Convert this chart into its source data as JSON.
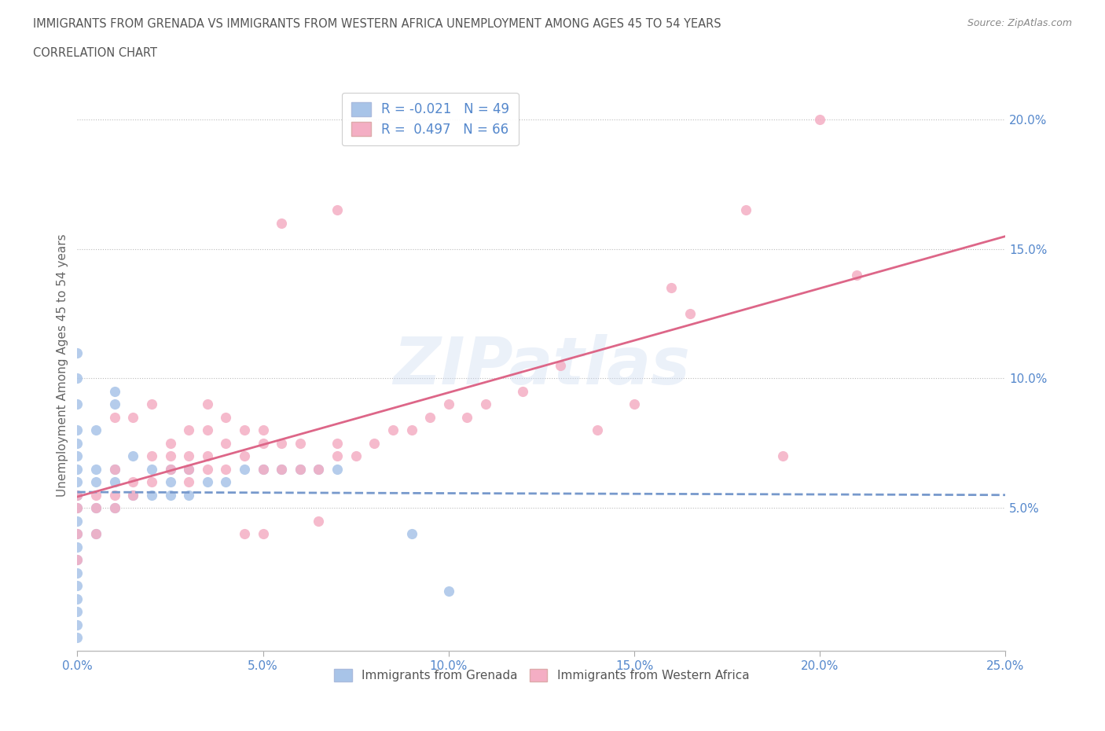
{
  "title_line1": "IMMIGRANTS FROM GRENADA VS IMMIGRANTS FROM WESTERN AFRICA UNEMPLOYMENT AMONG AGES 45 TO 54 YEARS",
  "title_line2": "CORRELATION CHART",
  "source": "Source: ZipAtlas.com",
  "ylabel": "Unemployment Among Ages 45 to 54 years",
  "xlim": [
    0.0,
    0.25
  ],
  "ylim": [
    -0.005,
    0.215
  ],
  "yticks": [
    0.05,
    0.1,
    0.15,
    0.2
  ],
  "ytick_labels": [
    "5.0%",
    "10.0%",
    "15.0%",
    "20.0%"
  ],
  "xticks": [
    0.0,
    0.05,
    0.1,
    0.15,
    0.2,
    0.25
  ],
  "xtick_labels": [
    "0.0%",
    "5.0%",
    "10.0%",
    "15.0%",
    "20.0%",
    "25.0%"
  ],
  "legend_labels": [
    "Immigrants from Grenada",
    "Immigrants from Western Africa"
  ],
  "R_grenada": -0.021,
  "N_grenada": 49,
  "R_western": 0.497,
  "N_western": 66,
  "color_grenada": "#a8c4e8",
  "color_western": "#f4aec4",
  "line_color_grenada": "#7799cc",
  "line_color_western": "#dd6688",
  "background_color": "#ffffff",
  "watermark": "ZIPatlas",
  "title_color": "#555555",
  "axis_color": "#5588cc",
  "grenada_x": [
    0.0,
    0.0,
    0.0,
    0.0,
    0.0,
    0.0,
    0.0,
    0.0,
    0.0,
    0.0,
    0.0,
    0.0,
    0.0,
    0.0,
    0.0,
    0.0,
    0.0,
    0.0,
    0.0,
    0.0,
    0.005,
    0.005,
    0.005,
    0.005,
    0.005,
    0.01,
    0.01,
    0.01,
    0.01,
    0.015,
    0.015,
    0.02,
    0.02,
    0.025,
    0.025,
    0.03,
    0.03,
    0.035,
    0.04,
    0.045,
    0.05,
    0.055,
    0.06,
    0.065,
    0.07,
    0.09,
    0.1,
    0.025,
    0.01
  ],
  "grenada_y": [
    0.01,
    0.02,
    0.03,
    0.035,
    0.04,
    0.045,
    0.05,
    0.055,
    0.06,
    0.065,
    0.07,
    0.075,
    0.08,
    0.09,
    0.1,
    0.11,
    0.005,
    0.015,
    0.025,
    0.0,
    0.04,
    0.05,
    0.06,
    0.065,
    0.08,
    0.05,
    0.06,
    0.065,
    0.09,
    0.055,
    0.07,
    0.055,
    0.065,
    0.055,
    0.06,
    0.055,
    0.065,
    0.06,
    0.06,
    0.065,
    0.065,
    0.065,
    0.065,
    0.065,
    0.065,
    0.04,
    0.018,
    0.065,
    0.095
  ],
  "western_x": [
    0.0,
    0.0,
    0.0,
    0.0,
    0.005,
    0.005,
    0.005,
    0.01,
    0.01,
    0.01,
    0.01,
    0.015,
    0.015,
    0.015,
    0.02,
    0.02,
    0.02,
    0.025,
    0.025,
    0.025,
    0.03,
    0.03,
    0.03,
    0.03,
    0.035,
    0.035,
    0.035,
    0.04,
    0.04,
    0.04,
    0.045,
    0.045,
    0.05,
    0.05,
    0.05,
    0.055,
    0.055,
    0.06,
    0.06,
    0.065,
    0.07,
    0.07,
    0.075,
    0.08,
    0.085,
    0.09,
    0.095,
    0.1,
    0.105,
    0.11,
    0.12,
    0.13,
    0.14,
    0.15,
    0.16,
    0.165,
    0.18,
    0.19,
    0.2,
    0.21,
    0.035,
    0.045,
    0.05,
    0.055,
    0.065,
    0.07
  ],
  "western_y": [
    0.03,
    0.04,
    0.05,
    0.055,
    0.04,
    0.05,
    0.055,
    0.05,
    0.055,
    0.065,
    0.085,
    0.055,
    0.06,
    0.085,
    0.06,
    0.07,
    0.09,
    0.065,
    0.07,
    0.075,
    0.06,
    0.065,
    0.07,
    0.08,
    0.065,
    0.07,
    0.09,
    0.065,
    0.075,
    0.085,
    0.07,
    0.08,
    0.065,
    0.075,
    0.08,
    0.065,
    0.075,
    0.065,
    0.075,
    0.065,
    0.07,
    0.075,
    0.07,
    0.075,
    0.08,
    0.08,
    0.085,
    0.09,
    0.085,
    0.09,
    0.095,
    0.105,
    0.08,
    0.09,
    0.135,
    0.125,
    0.165,
    0.07,
    0.2,
    0.14,
    0.08,
    0.04,
    0.04,
    0.16,
    0.045,
    0.165
  ]
}
